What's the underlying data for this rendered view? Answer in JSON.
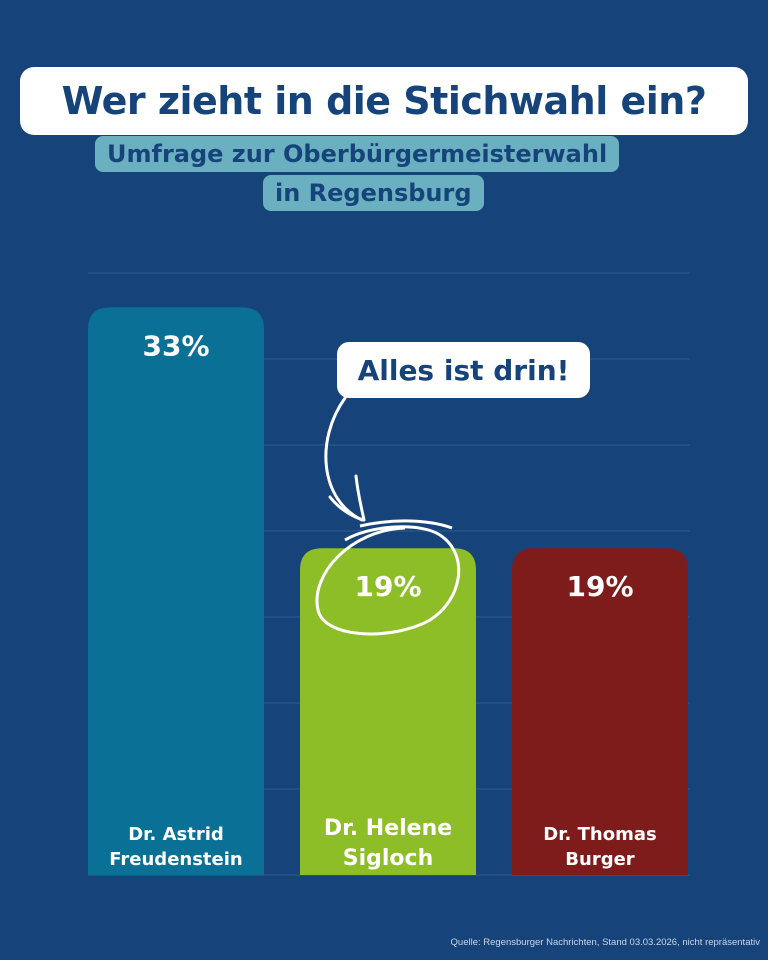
{
  "header": {
    "title": "Wer zieht in die Stichwahl ein?",
    "subtitle_line1": "Umfrage zur Oberbürgermeisterwahl",
    "subtitle_line2": "in Regensburg"
  },
  "chart_data": {
    "type": "bar",
    "categories": [
      "Dr. Astrid Freudenstein",
      "Dr. Helene Sigloch",
      "Dr. Thomas Burger"
    ],
    "label_lines": [
      [
        "Dr. Astrid",
        "Freudenstein"
      ],
      [
        "Dr. Helene",
        "Sigloch"
      ],
      [
        "Dr. Thomas",
        "Burger"
      ]
    ],
    "values": [
      33,
      19,
      19
    ],
    "data_labels": [
      "33%",
      "19%",
      "19%"
    ],
    "colors": [
      "#0a7096",
      "#8dbe28",
      "#7e1c1c"
    ],
    "ylim": [
      0,
      35
    ],
    "grid": true,
    "grid_step": 5,
    "highlighted": "Dr. Helene Sigloch"
  },
  "annotation": {
    "text": "Alles ist drin!"
  },
  "source": "Quelle: Regensburger Nachrichten, Stand 03.03.2026, nicht repräsentativ"
}
